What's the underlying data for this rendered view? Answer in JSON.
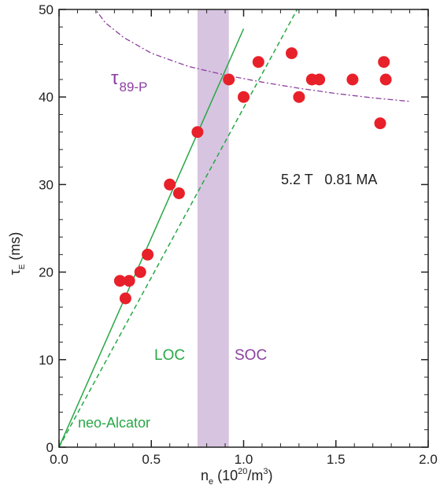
{
  "chart_data": {
    "type": "scatter",
    "xlabel": {
      "main": "n",
      "sub": "e",
      "units_pre": " (10",
      "units_sup": "20",
      "units_post": "/m",
      "units_sup2": "3",
      "units_end": ")"
    },
    "ylabel": {
      "main": "τ",
      "sub": "E",
      "units": " (ms)"
    },
    "xlim": [
      0,
      2.0
    ],
    "ylim": [
      0,
      50
    ],
    "xticks": [
      0.0,
      0.5,
      1.0,
      1.5,
      2.0
    ],
    "xtick_labels": [
      "0.0",
      "0.5",
      "1.0",
      "1.5",
      "2.0"
    ],
    "yticks": [
      0,
      10,
      20,
      30,
      40,
      50
    ],
    "ytick_labels": [
      "0",
      "10",
      "20",
      "30",
      "40",
      "50"
    ],
    "grid": false,
    "series": [
      {
        "marker": "filled-circle",
        "color": "#e8202a",
        "x": [
          0.33,
          0.38,
          0.36,
          0.44,
          0.48,
          0.6,
          0.65,
          0.75,
          0.92,
          1.0,
          1.08,
          1.26,
          1.3,
          1.37,
          1.41,
          1.59,
          1.74,
          1.76,
          1.77
        ],
        "y": [
          19,
          19,
          17,
          20,
          22,
          30,
          29,
          36,
          42,
          40,
          44,
          45,
          40,
          42,
          42,
          42,
          37,
          44,
          42
        ]
      }
    ],
    "lines": [
      {
        "label": "LOC",
        "style": "solid",
        "color": "#27a845",
        "x": [
          0,
          1.0
        ],
        "y": [
          0,
          47.8
        ]
      },
      {
        "label": "neo-Alcator",
        "style": "dashed",
        "color": "#27a845",
        "x": [
          0,
          1.29
        ],
        "y": [
          0,
          50
        ]
      }
    ],
    "curve": {
      "label_main": "τ",
      "label_sub": "89-P",
      "style": "dash-dot",
      "color": "#8b3fa0",
      "x": [
        0.18,
        0.25,
        0.35,
        0.5,
        0.7,
        0.9,
        1.1,
        1.3,
        1.5,
        1.7,
        1.9
      ],
      "y": [
        50.5,
        48.5,
        46.8,
        45.0,
        43.5,
        42.5,
        41.7,
        41.0,
        40.4,
        39.9,
        39.5
      ]
    },
    "band": {
      "x": [
        0.75,
        0.92
      ],
      "color": "#d7c4e0"
    },
    "annotations": {
      "conditions": "5.2 T   0.81 MA",
      "loc": "LOC",
      "soc": "SOC",
      "neo": "neo-Alcator"
    },
    "colors": {
      "green": "#27a845",
      "purple": "#8b3fa0",
      "red": "#e8202a",
      "axis": "#222222"
    }
  }
}
